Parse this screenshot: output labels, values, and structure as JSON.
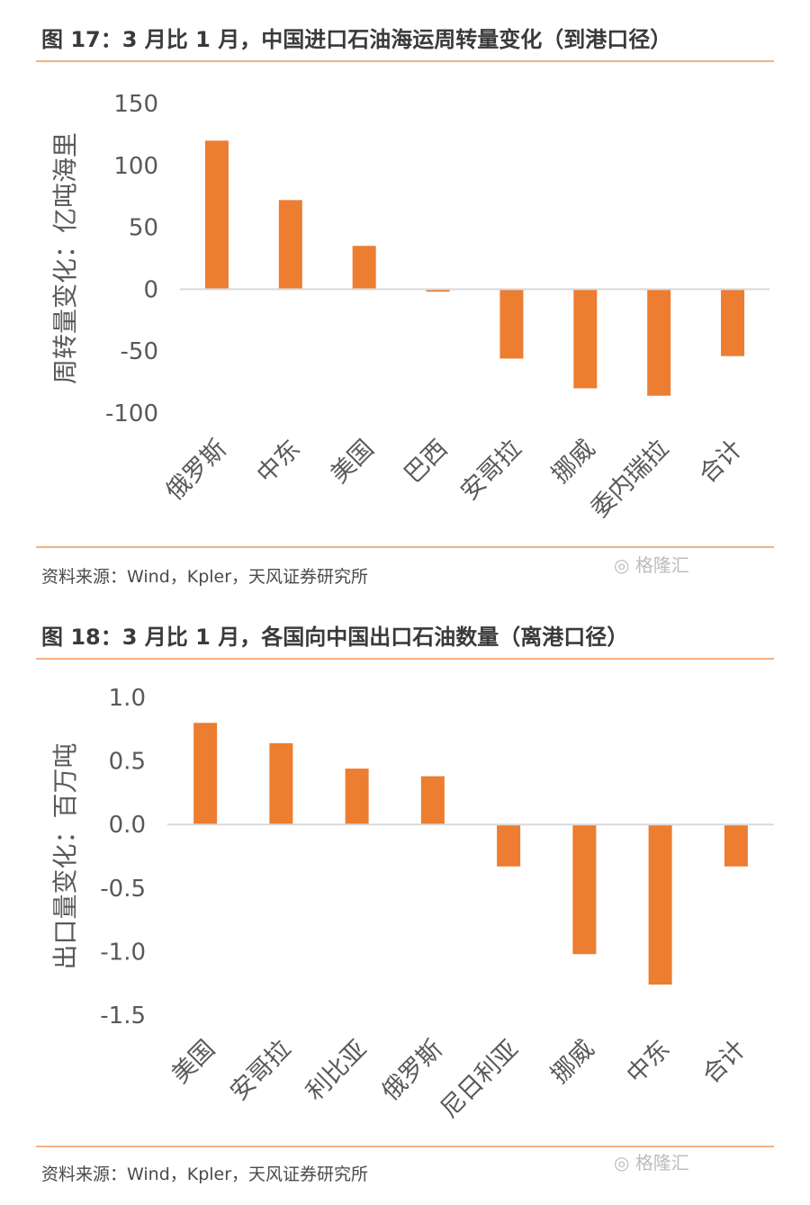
{
  "accent_color": "#ed7d31",
  "rule_color": "#f4b183",
  "watermark_text": "格隆汇",
  "watermark_icon": "wechat-icon",
  "figures": [
    {
      "title": "图 17：3 月比 1 月，中国进口石油海运周转量变化（到港口径）",
      "source": "资料来源：Wind，Kpler，天风证券研究所"
    },
    {
      "title": "图 18：3 月比 1 月，各国向中国出口石油数量（离港口径）",
      "source": "资料来源：Wind，Kpler，天风证券研究所"
    }
  ],
  "chart_data": [
    {
      "type": "bar",
      "ylabel": "周转量变化：亿吨海里",
      "ylim": [
        -100,
        150
      ],
      "yticks": [
        150,
        100,
        50,
        0,
        -50,
        -100
      ],
      "ytick_labels": [
        "150",
        "100",
        "50",
        "0",
        "-50",
        "-100"
      ],
      "categories": [
        "俄罗斯",
        "中东",
        "美国",
        "巴西",
        "安哥拉",
        "挪威",
        "委内瑞拉",
        "合计"
      ],
      "values": [
        120,
        72,
        35,
        -2,
        -56,
        -80,
        -86,
        -54
      ],
      "grid": false
    },
    {
      "type": "bar",
      "ylabel": "出口量变化：百万吨",
      "ylim": [
        -1.5,
        1.0
      ],
      "yticks": [
        1.0,
        0.5,
        0.0,
        -0.5,
        -1.0,
        -1.5
      ],
      "ytick_labels": [
        "1.0",
        "0.5",
        "0.0",
        "-0.5",
        "-1.0",
        "-1.5"
      ],
      "categories": [
        "美国",
        "安哥拉",
        "利比亚",
        "俄罗斯",
        "尼日利亚",
        "挪威",
        "中东",
        "合计"
      ],
      "values": [
        0.8,
        0.64,
        0.44,
        0.38,
        -0.33,
        -1.02,
        -1.26,
        -0.33
      ],
      "grid": false
    }
  ]
}
